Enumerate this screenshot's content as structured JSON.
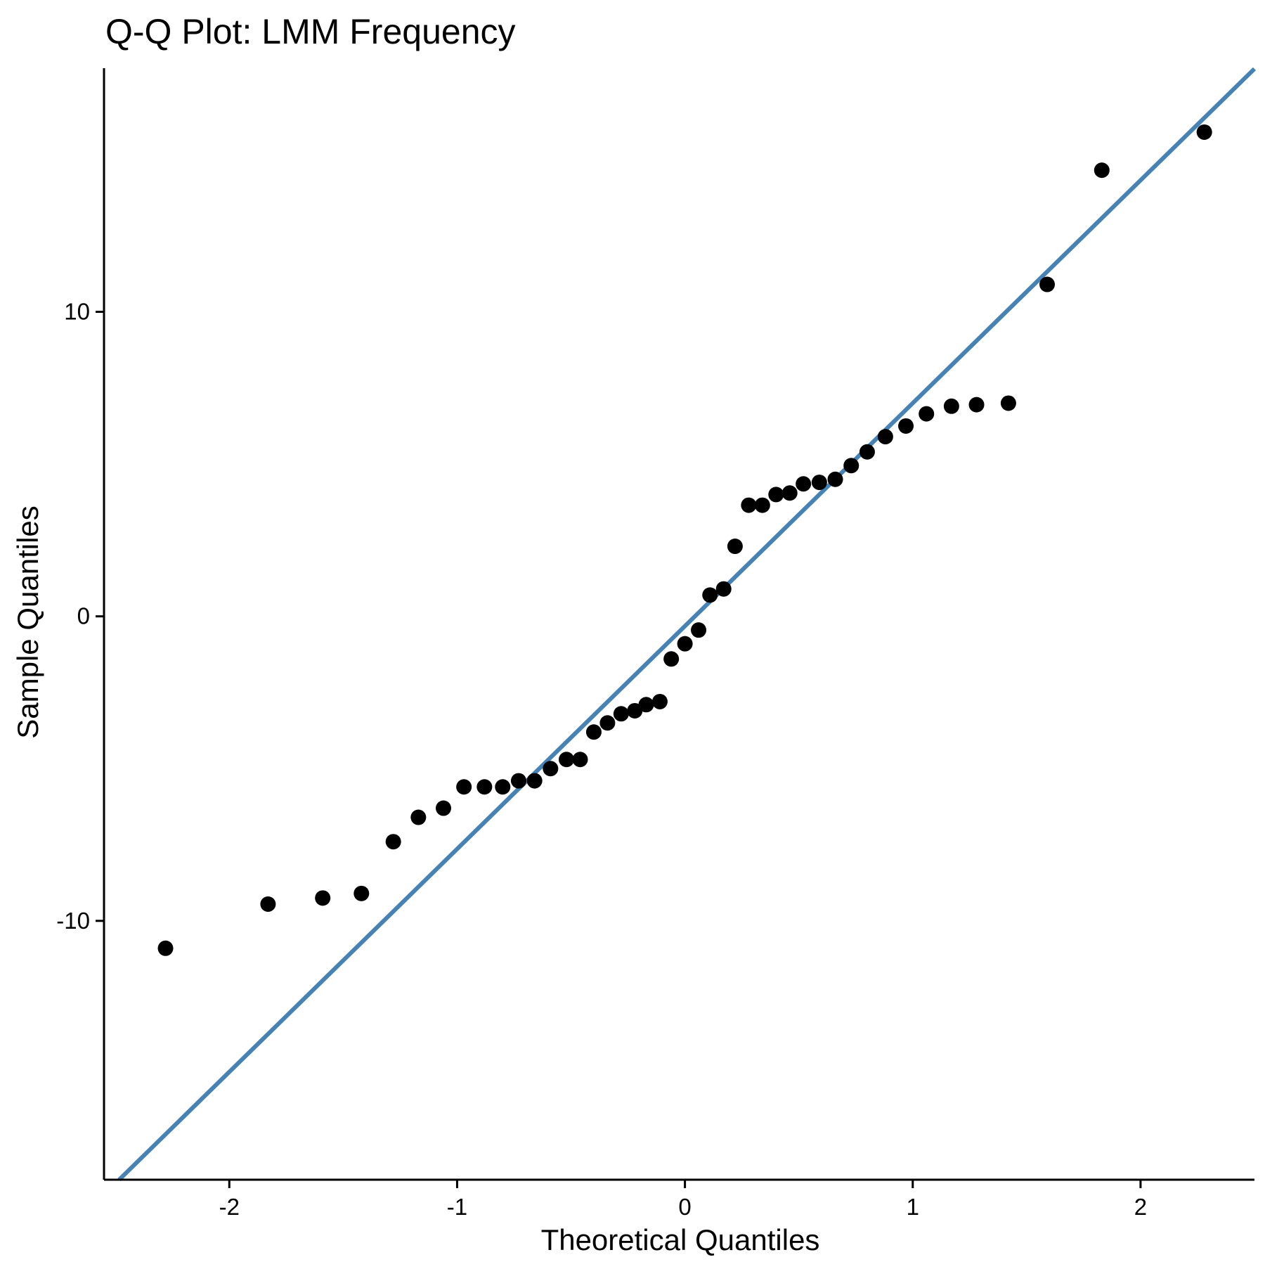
{
  "chart_data": {
    "type": "scatter",
    "title": "Q-Q Plot: LMM Frequency",
    "xlabel": "Theoretical Quantiles",
    "ylabel": "Sample Quantiles",
    "xlim": [
      -2.55,
      2.5
    ],
    "ylim": [
      -18.5,
      18.0
    ],
    "x_ticks": [
      -2,
      -1,
      0,
      1,
      2
    ],
    "x_tick_labels": [
      "-2",
      "-1",
      "0",
      "1",
      "2"
    ],
    "y_ticks": [
      -10,
      0,
      10
    ],
    "y_tick_labels": [
      "-10",
      "0",
      "10"
    ],
    "grid": false,
    "legend": "none",
    "reference_line": {
      "slope": 7.32,
      "intercept": -0.32,
      "color": "#4682B4"
    },
    "point_color": "#000000",
    "points": [
      {
        "x": -2.28,
        "y": -10.9
      },
      {
        "x": -1.83,
        "y": -9.45
      },
      {
        "x": -1.59,
        "y": -9.25
      },
      {
        "x": -1.42,
        "y": -9.1
      },
      {
        "x": -1.28,
        "y": -7.4
      },
      {
        "x": -1.17,
        "y": -6.6
      },
      {
        "x": -1.06,
        "y": -6.3
      },
      {
        "x": -0.97,
        "y": -5.6
      },
      {
        "x": -0.88,
        "y": -5.6
      },
      {
        "x": -0.8,
        "y": -5.6
      },
      {
        "x": -0.73,
        "y": -5.4
      },
      {
        "x": -0.66,
        "y": -5.4
      },
      {
        "x": -0.59,
        "y": -5.0
      },
      {
        "x": -0.52,
        "y": -4.7
      },
      {
        "x": -0.46,
        "y": -4.7
      },
      {
        "x": -0.4,
        "y": -3.8
      },
      {
        "x": -0.34,
        "y": -3.5
      },
      {
        "x": -0.28,
        "y": -3.2
      },
      {
        "x": -0.22,
        "y": -3.1
      },
      {
        "x": -0.17,
        "y": -2.9
      },
      {
        "x": -0.11,
        "y": -2.8
      },
      {
        "x": -0.06,
        "y": -1.4
      },
      {
        "x": 0.0,
        "y": -0.9
      },
      {
        "x": 0.06,
        "y": -0.45
      },
      {
        "x": 0.11,
        "y": 0.7
      },
      {
        "x": 0.17,
        "y": 0.9
      },
      {
        "x": 0.22,
        "y": 2.3
      },
      {
        "x": 0.28,
        "y": 3.65
      },
      {
        "x": 0.34,
        "y": 3.65
      },
      {
        "x": 0.4,
        "y": 4.0
      },
      {
        "x": 0.46,
        "y": 4.05
      },
      {
        "x": 0.52,
        "y": 4.35
      },
      {
        "x": 0.59,
        "y": 4.4
      },
      {
        "x": 0.66,
        "y": 4.5
      },
      {
        "x": 0.73,
        "y": 4.95
      },
      {
        "x": 0.8,
        "y": 5.4
      },
      {
        "x": 0.88,
        "y": 5.9
      },
      {
        "x": 0.97,
        "y": 6.25
      },
      {
        "x": 1.06,
        "y": 6.65
      },
      {
        "x": 1.17,
        "y": 6.9
      },
      {
        "x": 1.28,
        "y": 6.95
      },
      {
        "x": 1.42,
        "y": 7.0
      },
      {
        "x": 1.59,
        "y": 10.9
      },
      {
        "x": 1.83,
        "y": 14.65
      },
      {
        "x": 2.28,
        "y": 15.9
      }
    ]
  }
}
